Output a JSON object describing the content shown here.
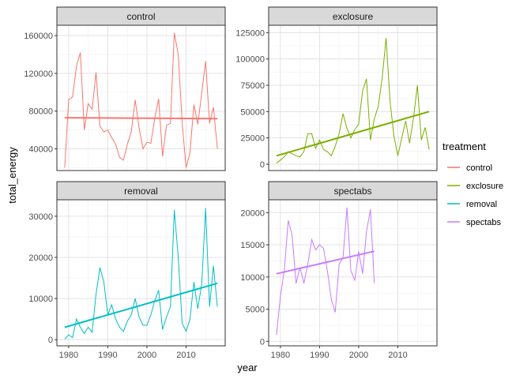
{
  "chart_data": {
    "type": "line",
    "xlabel": "year",
    "ylabel": "total_energy",
    "xlim": [
      1977,
      2020
    ],
    "x_ticks": [
      1980,
      1990,
      2000,
      2010
    ],
    "grid": true,
    "facet_strip_color": "#d9d9d9",
    "legend": {
      "title": "treatment",
      "position": "right",
      "entries": [
        {
          "label": "control",
          "color": "#F8766D"
        },
        {
          "label": "exclosure",
          "color": "#7CAE00"
        },
        {
          "label": "removal",
          "color": "#00BFC4"
        },
        {
          "label": "spectabs",
          "color": "#C77CFF"
        }
      ]
    },
    "panels": [
      {
        "name": "control",
        "color": "#F8766D",
        "ylim": [
          17000,
          171000
        ],
        "y_ticks": [
          40000,
          80000,
          120000,
          160000
        ],
        "years": [
          1979,
          1980,
          1981,
          1982,
          1983,
          1984,
          1985,
          1986,
          1987,
          1988,
          1989,
          1990,
          1991,
          1992,
          1993,
          1994,
          1995,
          1996,
          1997,
          1998,
          1999,
          2000,
          2001,
          2002,
          2003,
          2004,
          2005,
          2006,
          2007,
          2008,
          2009,
          2010,
          2011,
          2012,
          2013,
          2014,
          2015,
          2016,
          2017,
          2018
        ],
        "values": [
          20000,
          92000,
          95000,
          128000,
          142000,
          60000,
          88000,
          82000,
          121000,
          64000,
          58000,
          60000,
          52000,
          45000,
          31000,
          28000,
          45000,
          58000,
          92000,
          62000,
          40000,
          47000,
          46000,
          72000,
          93000,
          32000,
          65000,
          67000,
          163000,
          140000,
          68000,
          20000,
          36000,
          87000,
          66000,
          99000,
          133000,
          67000,
          84000,
          40000
        ],
        "trend": [
          [
            1979,
            73000
          ],
          [
            2018,
            72000
          ]
        ]
      },
      {
        "name": "exclosure",
        "color": "#7CAE00",
        "ylim": [
          -6000,
          132000
        ],
        "y_ticks": [
          0,
          25000,
          50000,
          75000,
          100000,
          125000
        ],
        "years": [
          1979,
          1980,
          1981,
          1982,
          1983,
          1984,
          1985,
          1986,
          1987,
          1988,
          1989,
          1990,
          1991,
          1992,
          1993,
          1994,
          1995,
          1996,
          1997,
          1998,
          1999,
          2000,
          2001,
          2002,
          2003,
          2004,
          2005,
          2006,
          2007,
          2008,
          2009,
          2010,
          2011,
          2012,
          2013,
          2014,
          2015,
          2016,
          2017,
          2018
        ],
        "values": [
          1000,
          4000,
          7000,
          12000,
          10000,
          8000,
          7000,
          12000,
          29000,
          29000,
          15000,
          23000,
          14000,
          12000,
          8000,
          17000,
          29000,
          48000,
          34000,
          25000,
          33000,
          38000,
          70000,
          81000,
          23000,
          43000,
          55000,
          82000,
          120000,
          60000,
          27000,
          8000,
          25000,
          41000,
          20000,
          44000,
          75000,
          23000,
          35000,
          14000
        ],
        "trend": [
          [
            1979,
            8000
          ],
          [
            2018,
            50000
          ]
        ]
      },
      {
        "name": "removal",
        "color": "#00BFC4",
        "ylim": [
          -1500,
          34000
        ],
        "y_ticks": [
          0,
          10000,
          20000,
          30000
        ],
        "years": [
          1979,
          1980,
          1981,
          1982,
          1983,
          1984,
          1985,
          1986,
          1987,
          1988,
          1989,
          1990,
          1991,
          1992,
          1993,
          1994,
          1995,
          1996,
          1997,
          1998,
          1999,
          2000,
          2001,
          2002,
          2003,
          2004,
          2005,
          2006,
          2007,
          2008,
          2009,
          2010,
          2011,
          2012,
          2013,
          2014,
          2015,
          2016,
          2017,
          2018
        ],
        "values": [
          100,
          1200,
          500,
          5000,
          3000,
          1500,
          3000,
          1800,
          11000,
          17500,
          14000,
          6000,
          8500,
          5000,
          3000,
          2000,
          4500,
          6000,
          10000,
          5500,
          3500,
          3500,
          6000,
          9500,
          12000,
          2500,
          5500,
          8000,
          31500,
          20000,
          4000,
          2000,
          5000,
          14000,
          7500,
          13500,
          32000,
          8000,
          18000,
          8000
        ],
        "trend": [
          [
            1979,
            3000
          ],
          [
            2018,
            13700
          ]
        ]
      },
      {
        "name": "spectabs",
        "color": "#C77CFF",
        "ylim": [
          -700,
          22000
        ],
        "y_ticks": [
          0,
          5000,
          10000,
          15000,
          20000
        ],
        "years": [
          1979,
          1980,
          1981,
          1982,
          1983,
          1984,
          1985,
          1986,
          1987,
          1988,
          1989,
          1990,
          1991,
          1992,
          1993,
          1994,
          1995,
          1996,
          1997,
          1998,
          1999,
          2000,
          2001,
          2002,
          2003,
          2004
        ],
        "values": [
          1000,
          7000,
          11000,
          18800,
          16500,
          9000,
          11500,
          9000,
          12000,
          15800,
          14200,
          15000,
          14500,
          11000,
          6500,
          4500,
          12000,
          13000,
          20800,
          11000,
          9500,
          14000,
          10500,
          17000,
          20500,
          9000
        ],
        "trend": [
          [
            1979,
            10500
          ],
          [
            2004,
            14000
          ]
        ]
      }
    ]
  }
}
